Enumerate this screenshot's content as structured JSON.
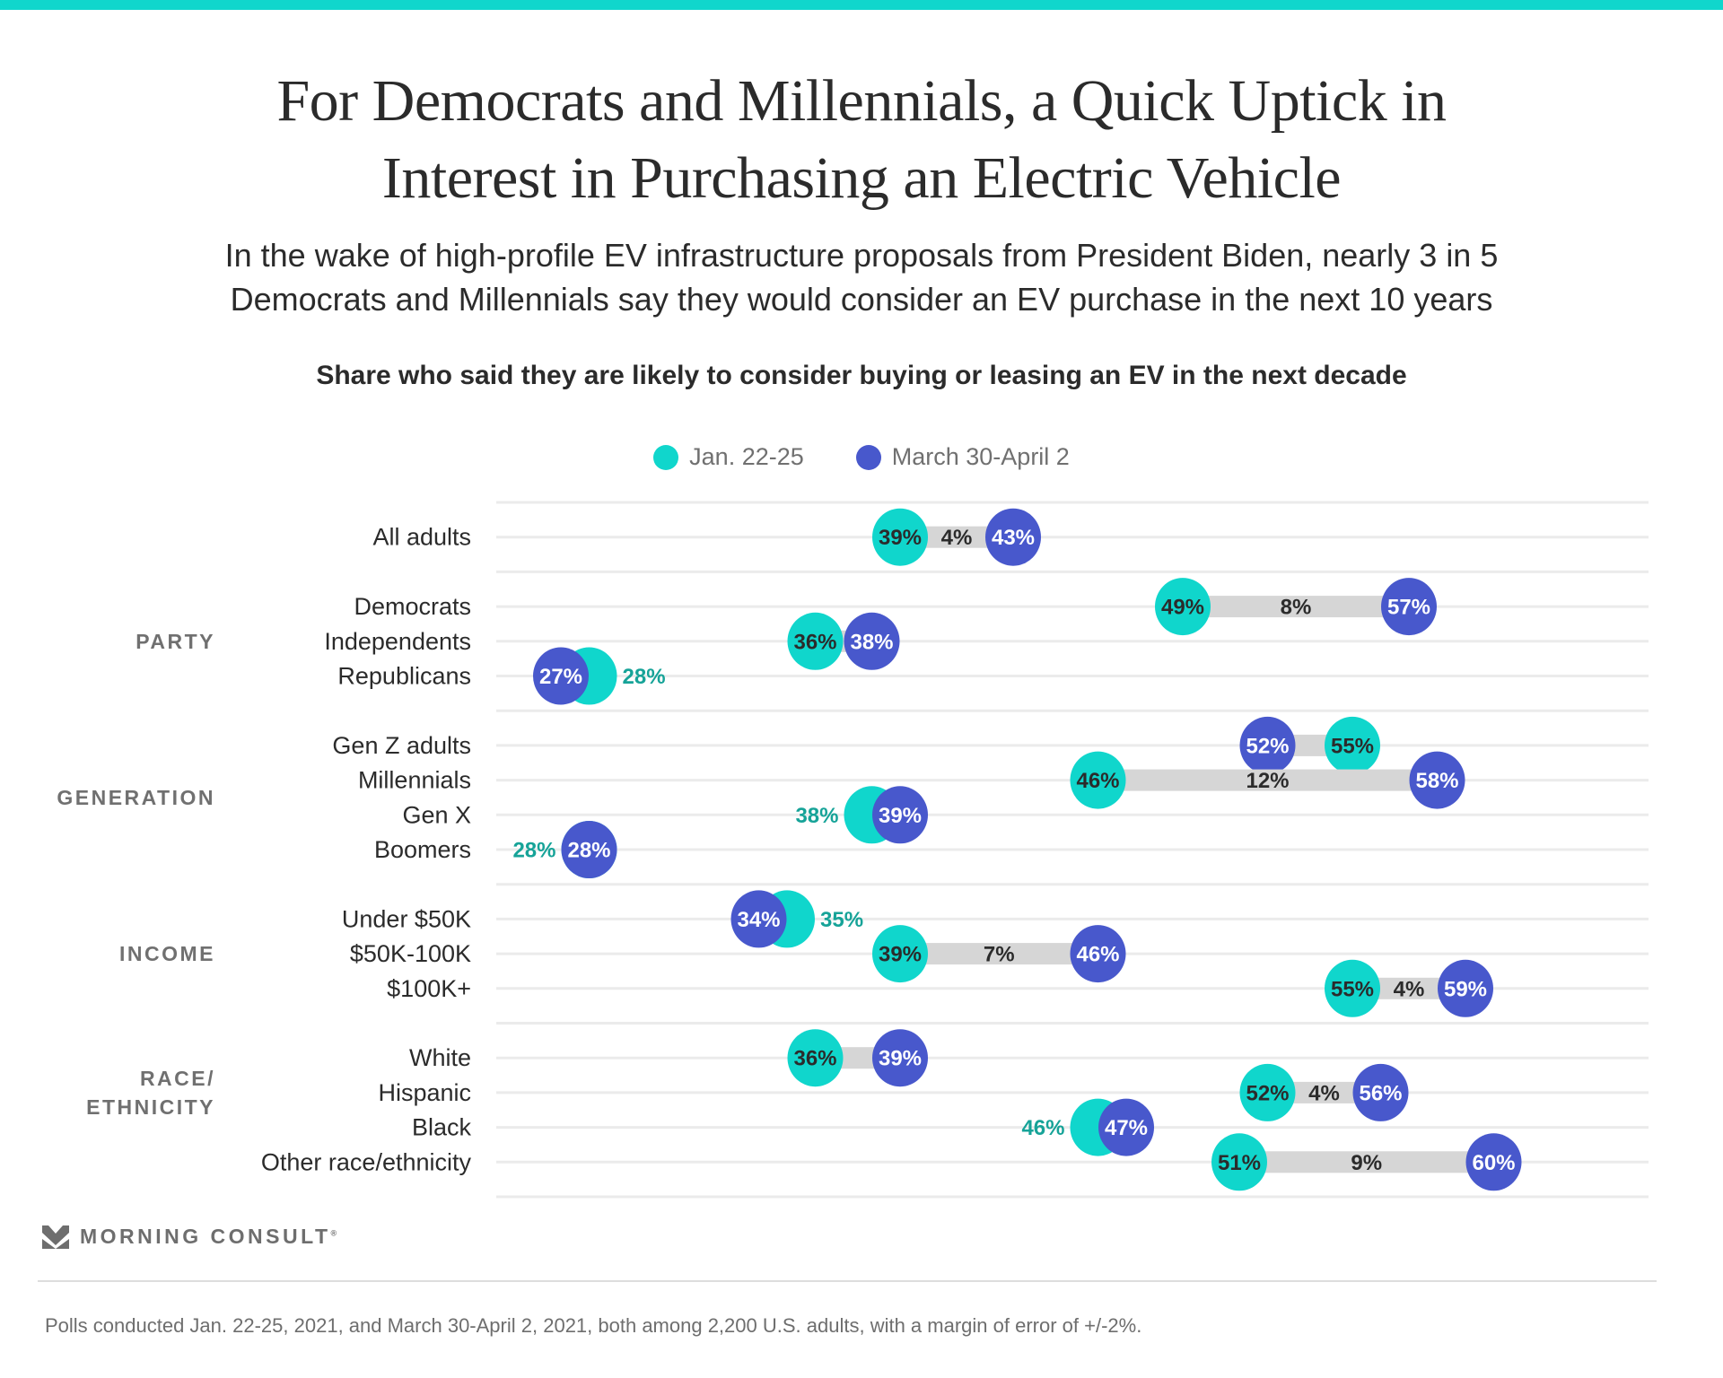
{
  "header": {
    "title_line1": "For Democrats and Millennials, a Quick Uptick in",
    "title_line2": "Interest in Purchasing an Electric Vehicle",
    "subtitle_line1": "In the wake of high-profile EV infrastructure proposals from President Biden, nearly 3 in 5",
    "subtitle_line2": "Democrats and Millennials say they would consider an EV purchase in the next 10 years"
  },
  "colors": {
    "accent_bar": "#10d6cc",
    "jan": "#10d6cc",
    "march": "#4858cc",
    "outside_jan_label": "#16a398",
    "gap_bar": "#d6d6d6",
    "gridline": "#ebebeb"
  },
  "chart_data": {
    "type": "dumbbell",
    "title": "Share who said they are likely to consider buying or leasing an EV in the next decade",
    "legend": [
      {
        "name": "Jan. 22-25",
        "color": "#10d6cc"
      },
      {
        "name": "March 30-April 2",
        "color": "#4858cc"
      }
    ],
    "legend_position": "top-center",
    "unit": "%",
    "series": [
      {
        "name": "Jan. 22-25",
        "values": [
          39,
          49,
          36,
          28,
          55,
          46,
          38,
          28,
          35,
          39,
          55,
          36,
          52,
          46,
          51
        ]
      },
      {
        "name": "March 30-April 2",
        "values": [
          43,
          57,
          38,
          27,
          52,
          58,
          39,
          28,
          34,
          46,
          59,
          39,
          56,
          47,
          60
        ]
      }
    ],
    "categories": [
      "All adults",
      "Democrats",
      "Independents",
      "Republicans",
      "Gen Z adults",
      "Millennials",
      "Gen X",
      "Boomers",
      "Under $50K",
      "$50K-100K",
      "$100K+",
      "White",
      "Hispanic",
      "Black",
      "Other race/ethnicity"
    ],
    "groups": [
      {
        "label": "",
        "rows": [
          "All adults"
        ]
      },
      {
        "label": "PARTY",
        "rows": [
          "Democrats",
          "Independents",
          "Republicans"
        ]
      },
      {
        "label": "GENERATION",
        "rows": [
          "Gen Z adults",
          "Millennials",
          "Gen X",
          "Boomers"
        ]
      },
      {
        "label": "INCOME",
        "rows": [
          "Under $50K",
          "$50K-100K",
          "$100K+"
        ]
      },
      {
        "label": "RACE/ ETHNICITY",
        "rows": [
          "White",
          "Hispanic",
          "Black",
          "Other race/ethnicity"
        ]
      }
    ],
    "rows": [
      {
        "label": "All adults",
        "group": "",
        "jan": 39,
        "march": 43,
        "change": "4%"
      },
      {
        "label": "Democrats",
        "group": "PARTY",
        "jan": 49,
        "march": 57,
        "change": "8%"
      },
      {
        "label": "Independents",
        "group": "PARTY",
        "jan": 36,
        "march": 38,
        "change": ""
      },
      {
        "label": "Republicans",
        "group": "PARTY",
        "jan": 28,
        "march": 27,
        "change": ""
      },
      {
        "label": "Gen Z adults",
        "group": "GENERATION",
        "jan": 55,
        "march": 52,
        "change": ""
      },
      {
        "label": "Millennials",
        "group": "GENERATION",
        "jan": 46,
        "march": 58,
        "change": "12%"
      },
      {
        "label": "Gen X",
        "group": "GENERATION",
        "jan": 38,
        "march": 39,
        "change": ""
      },
      {
        "label": "Boomers",
        "group": "GENERATION",
        "jan": 28,
        "march": 28,
        "change": ""
      },
      {
        "label": "Under $50K",
        "group": "INCOME",
        "jan": 35,
        "march": 34,
        "change": ""
      },
      {
        "label": "$50K-100K",
        "group": "INCOME",
        "jan": 39,
        "march": 46,
        "change": "7%"
      },
      {
        "label": "$100K+",
        "group": "INCOME",
        "jan": 55,
        "march": 59,
        "change": "4%"
      },
      {
        "label": "White",
        "group": "RACE/ETHNICITY",
        "jan": 36,
        "march": 39,
        "change": ""
      },
      {
        "label": "Hispanic",
        "group": "RACE/ETHNICITY",
        "jan": 52,
        "march": 56,
        "change": "4%"
      },
      {
        "label": "Black",
        "group": "RACE/ETHNICITY",
        "jan": 46,
        "march": 47,
        "change": ""
      },
      {
        "label": "Other race/ethnicity",
        "group": "RACE/ETHNICITY",
        "jan": 51,
        "march": 60,
        "change": "9%"
      }
    ],
    "xlim": [
      26,
      62
    ],
    "grid": true
  },
  "footer": {
    "brand": "MORNING CONSULT",
    "registered": "®",
    "note": "Polls conducted Jan. 22-25, 2021, and March 30-April 2, 2021, both among 2,200 U.S. adults, with a margin of error of +/-2%."
  }
}
